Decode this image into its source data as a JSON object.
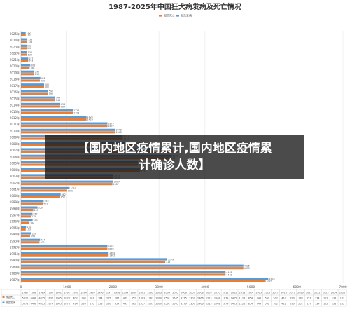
{
  "banner": {
    "line1": "【国内地区疫情累计,国内地区疫情累",
    "line2": "计确诊人数】"
  },
  "colors": {
    "series1": "#ED7D31",
    "series2": "#5B9BD5"
  },
  "chart_data": {
    "type": "bar",
    "orientation": "horizontal",
    "title": "1987-2025年中国狂犬病发病及死亡情况",
    "legend_position": "top-center",
    "grid": true,
    "xlim": [
      0,
      7000
    ],
    "xticks": [
      0,
      1000,
      2000,
      3000,
      4000,
      5000,
      6000,
      7000
    ],
    "categories": [
      "1987年",
      "1988年",
      "1989年",
      "1990年",
      "1991年",
      "1992年",
      "1993年",
      "1994年",
      "1995年",
      "1996年",
      "1997年",
      "1998年",
      "1999年",
      "2000年",
      "2001年",
      "2002年",
      "2003年",
      "2004年",
      "2005年",
      "2006年",
      "2007年",
      "2008年",
      "2009年",
      "2010年",
      "2011年",
      "2012年",
      "2013年",
      "2014年",
      "2015年",
      "2016年",
      "2017年",
      "2018年",
      "2019年",
      "2020年",
      "2021年",
      "2022年",
      "2023年",
      "2024年",
      "2025年"
    ],
    "series": [
      {
        "name": "报告死亡",
        "values": [
          5320,
          4448,
          4835,
          3137,
          1905,
          1878,
          402,
          198,
          103,
          184,
          215,
          267,
          479,
          852,
          1003,
          1987,
          2010,
          2591,
          2545,
          3215,
          3300,
          2466,
          2213,
          2048,
          1879,
          1425,
          1128,
          854,
          744,
          592,
          502,
          410,
          290,
          188,
          157,
          134,
          122,
          138,
          102
        ]
      },
      {
        "name": "报告发病",
        "values": [
          5378,
          4448,
          4835,
          3179,
          1905,
          1878,
          414,
          226,
          110,
          253,
          250,
          359,
          493,
          862,
          1057,
          2007,
          2010,
          2591,
          2545,
          3279,
          3300,
          2466,
          2213,
          2048,
          1879,
          1425,
          1128,
          854,
          744,
          592,
          502,
          422,
          290,
          202,
          157,
          134,
          122,
          138,
          102
        ]
      }
    ]
  }
}
